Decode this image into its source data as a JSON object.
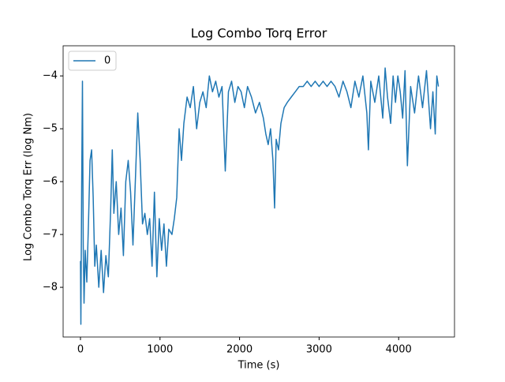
{
  "chart_data": {
    "type": "line",
    "title": "Log Combo Torq Error",
    "xlabel": "Time (s)",
    "ylabel": "Log Combo Torq Err (log Nm)",
    "series": [
      {
        "name": "0",
        "color": "#1f77b4",
        "x": [
          0,
          5,
          15,
          25,
          35,
          45,
          60,
          80,
          100,
          120,
          140,
          160,
          180,
          200,
          230,
          260,
          290,
          320,
          350,
          380,
          400,
          420,
          450,
          480,
          510,
          540,
          570,
          600,
          630,
          660,
          690,
          720,
          750,
          780,
          810,
          840,
          870,
          900,
          930,
          960,
          990,
          1020,
          1050,
          1080,
          1110,
          1150,
          1180,
          1210,
          1240,
          1270,
          1300,
          1340,
          1380,
          1420,
          1460,
          1500,
          1540,
          1580,
          1620,
          1660,
          1700,
          1740,
          1780,
          1820,
          1860,
          1900,
          1940,
          1980,
          2020,
          2060,
          2100,
          2150,
          2200,
          2250,
          2300,
          2330,
          2360,
          2390,
          2420,
          2440,
          2460,
          2490,
          2520,
          2560,
          2600,
          2650,
          2700,
          2750,
          2800,
          2850,
          2900,
          2950,
          3000,
          3050,
          3100,
          3150,
          3200,
          3250,
          3300,
          3350,
          3400,
          3450,
          3500,
          3550,
          3600,
          3620,
          3650,
          3700,
          3750,
          3800,
          3830,
          3860,
          3900,
          3930,
          3960,
          3990,
          4020,
          4050,
          4080,
          4110,
          4150,
          4200,
          4250,
          4300,
          4350,
          4400,
          4430,
          4460,
          4480,
          4500
        ],
        "values": [
          -7.5,
          -8.7,
          -6.1,
          -4.1,
          -7.2,
          -8.3,
          -7.3,
          -7.9,
          -6.8,
          -5.6,
          -5.4,
          -6.3,
          -7.6,
          -7.2,
          -8.0,
          -7.3,
          -8.1,
          -7.4,
          -7.8,
          -6.5,
          -5.4,
          -6.6,
          -6.0,
          -7.0,
          -6.5,
          -7.4,
          -6.0,
          -5.6,
          -6.2,
          -7.2,
          -6.0,
          -4.7,
          -5.6,
          -6.8,
          -6.6,
          -7.0,
          -6.7,
          -7.6,
          -6.2,
          -7.8,
          -6.7,
          -7.3,
          -6.8,
          -7.6,
          -6.9,
          -7.0,
          -6.7,
          -6.3,
          -5.0,
          -5.6,
          -4.9,
          -4.4,
          -4.6,
          -4.2,
          -5.0,
          -4.5,
          -4.3,
          -4.6,
          -4.0,
          -4.3,
          -4.1,
          -4.4,
          -4.2,
          -5.8,
          -4.3,
          -4.1,
          -4.5,
          -4.2,
          -4.3,
          -4.6,
          -4.2,
          -4.4,
          -4.7,
          -4.5,
          -4.8,
          -5.1,
          -5.3,
          -5.0,
          -5.6,
          -6.5,
          -5.2,
          -5.4,
          -4.9,
          -4.6,
          -4.5,
          -4.4,
          -4.3,
          -4.2,
          -4.2,
          -4.1,
          -4.2,
          -4.1,
          -4.2,
          -4.1,
          -4.2,
          -4.1,
          -4.2,
          -4.4,
          -4.1,
          -4.3,
          -4.6,
          -4.1,
          -4.4,
          -4.0,
          -4.7,
          -5.4,
          -4.1,
          -4.5,
          -4.0,
          -4.8,
          -3.85,
          -4.4,
          -4.9,
          -4.0,
          -4.5,
          -4.0,
          -4.3,
          -4.8,
          -3.9,
          -5.7,
          -4.2,
          -4.7,
          -4.0,
          -4.6,
          -3.9,
          -5.0,
          -4.3,
          -5.1,
          -4.0,
          -4.2
        ]
      }
    ],
    "xlim": [
      -218,
      4702
    ],
    "xticks": [
      0,
      1000,
      2000,
      3000,
      4000
    ],
    "ylim": [
      -8.94,
      -3.43
    ],
    "yticks": [
      {
        "value": -8,
        "label": "−8"
      },
      {
        "value": -7,
        "label": "−7"
      },
      {
        "value": -6,
        "label": "−6"
      },
      {
        "value": -5,
        "label": "−5"
      },
      {
        "value": -4,
        "label": "−4"
      }
    ],
    "legend": "upper left"
  }
}
